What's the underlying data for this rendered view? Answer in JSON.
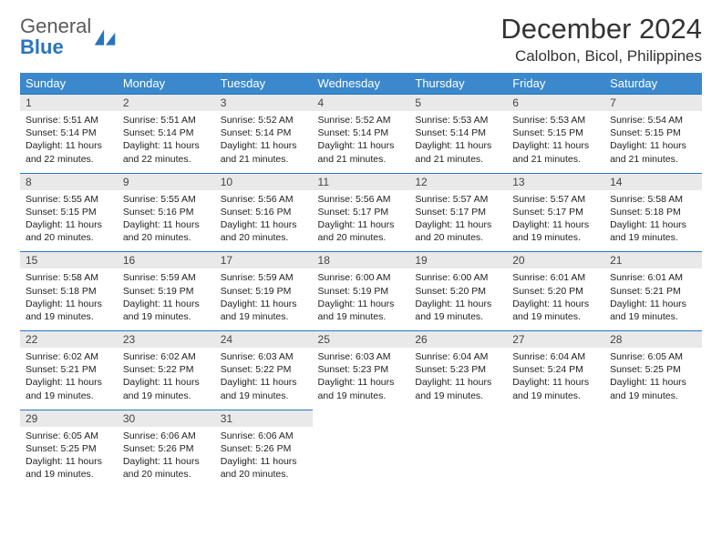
{
  "brand": {
    "word1": "General",
    "word2": "Blue",
    "color1": "#5b5b5b",
    "color2": "#2a74bd"
  },
  "title": "December 2024",
  "location": "Calolbon, Bicol, Philippines",
  "weekday_header_bg": "#3b89cc",
  "daynum_bg": "#e9e9e9",
  "rule_color": "#2a74bd",
  "weekdays": [
    "Sunday",
    "Monday",
    "Tuesday",
    "Wednesday",
    "Thursday",
    "Friday",
    "Saturday"
  ],
  "weeks": [
    [
      {
        "n": "1",
        "sr": "Sunrise: 5:51 AM",
        "ss": "Sunset: 5:14 PM",
        "dl": "Daylight: 11 hours and 22 minutes."
      },
      {
        "n": "2",
        "sr": "Sunrise: 5:51 AM",
        "ss": "Sunset: 5:14 PM",
        "dl": "Daylight: 11 hours and 22 minutes."
      },
      {
        "n": "3",
        "sr": "Sunrise: 5:52 AM",
        "ss": "Sunset: 5:14 PM",
        "dl": "Daylight: 11 hours and 21 minutes."
      },
      {
        "n": "4",
        "sr": "Sunrise: 5:52 AM",
        "ss": "Sunset: 5:14 PM",
        "dl": "Daylight: 11 hours and 21 minutes."
      },
      {
        "n": "5",
        "sr": "Sunrise: 5:53 AM",
        "ss": "Sunset: 5:14 PM",
        "dl": "Daylight: 11 hours and 21 minutes."
      },
      {
        "n": "6",
        "sr": "Sunrise: 5:53 AM",
        "ss": "Sunset: 5:15 PM",
        "dl": "Daylight: 11 hours and 21 minutes."
      },
      {
        "n": "7",
        "sr": "Sunrise: 5:54 AM",
        "ss": "Sunset: 5:15 PM",
        "dl": "Daylight: 11 hours and 21 minutes."
      }
    ],
    [
      {
        "n": "8",
        "sr": "Sunrise: 5:55 AM",
        "ss": "Sunset: 5:15 PM",
        "dl": "Daylight: 11 hours and 20 minutes."
      },
      {
        "n": "9",
        "sr": "Sunrise: 5:55 AM",
        "ss": "Sunset: 5:16 PM",
        "dl": "Daylight: 11 hours and 20 minutes."
      },
      {
        "n": "10",
        "sr": "Sunrise: 5:56 AM",
        "ss": "Sunset: 5:16 PM",
        "dl": "Daylight: 11 hours and 20 minutes."
      },
      {
        "n": "11",
        "sr": "Sunrise: 5:56 AM",
        "ss": "Sunset: 5:17 PM",
        "dl": "Daylight: 11 hours and 20 minutes."
      },
      {
        "n": "12",
        "sr": "Sunrise: 5:57 AM",
        "ss": "Sunset: 5:17 PM",
        "dl": "Daylight: 11 hours and 20 minutes."
      },
      {
        "n": "13",
        "sr": "Sunrise: 5:57 AM",
        "ss": "Sunset: 5:17 PM",
        "dl": "Daylight: 11 hours and 19 minutes."
      },
      {
        "n": "14",
        "sr": "Sunrise: 5:58 AM",
        "ss": "Sunset: 5:18 PM",
        "dl": "Daylight: 11 hours and 19 minutes."
      }
    ],
    [
      {
        "n": "15",
        "sr": "Sunrise: 5:58 AM",
        "ss": "Sunset: 5:18 PM",
        "dl": "Daylight: 11 hours and 19 minutes."
      },
      {
        "n": "16",
        "sr": "Sunrise: 5:59 AM",
        "ss": "Sunset: 5:19 PM",
        "dl": "Daylight: 11 hours and 19 minutes."
      },
      {
        "n": "17",
        "sr": "Sunrise: 5:59 AM",
        "ss": "Sunset: 5:19 PM",
        "dl": "Daylight: 11 hours and 19 minutes."
      },
      {
        "n": "18",
        "sr": "Sunrise: 6:00 AM",
        "ss": "Sunset: 5:19 PM",
        "dl": "Daylight: 11 hours and 19 minutes."
      },
      {
        "n": "19",
        "sr": "Sunrise: 6:00 AM",
        "ss": "Sunset: 5:20 PM",
        "dl": "Daylight: 11 hours and 19 minutes."
      },
      {
        "n": "20",
        "sr": "Sunrise: 6:01 AM",
        "ss": "Sunset: 5:20 PM",
        "dl": "Daylight: 11 hours and 19 minutes."
      },
      {
        "n": "21",
        "sr": "Sunrise: 6:01 AM",
        "ss": "Sunset: 5:21 PM",
        "dl": "Daylight: 11 hours and 19 minutes."
      }
    ],
    [
      {
        "n": "22",
        "sr": "Sunrise: 6:02 AM",
        "ss": "Sunset: 5:21 PM",
        "dl": "Daylight: 11 hours and 19 minutes."
      },
      {
        "n": "23",
        "sr": "Sunrise: 6:02 AM",
        "ss": "Sunset: 5:22 PM",
        "dl": "Daylight: 11 hours and 19 minutes."
      },
      {
        "n": "24",
        "sr": "Sunrise: 6:03 AM",
        "ss": "Sunset: 5:22 PM",
        "dl": "Daylight: 11 hours and 19 minutes."
      },
      {
        "n": "25",
        "sr": "Sunrise: 6:03 AM",
        "ss": "Sunset: 5:23 PM",
        "dl": "Daylight: 11 hours and 19 minutes."
      },
      {
        "n": "26",
        "sr": "Sunrise: 6:04 AM",
        "ss": "Sunset: 5:23 PM",
        "dl": "Daylight: 11 hours and 19 minutes."
      },
      {
        "n": "27",
        "sr": "Sunrise: 6:04 AM",
        "ss": "Sunset: 5:24 PM",
        "dl": "Daylight: 11 hours and 19 minutes."
      },
      {
        "n": "28",
        "sr": "Sunrise: 6:05 AM",
        "ss": "Sunset: 5:25 PM",
        "dl": "Daylight: 11 hours and 19 minutes."
      }
    ],
    [
      {
        "n": "29",
        "sr": "Sunrise: 6:05 AM",
        "ss": "Sunset: 5:25 PM",
        "dl": "Daylight: 11 hours and 19 minutes."
      },
      {
        "n": "30",
        "sr": "Sunrise: 6:06 AM",
        "ss": "Sunset: 5:26 PM",
        "dl": "Daylight: 11 hours and 20 minutes."
      },
      {
        "n": "31",
        "sr": "Sunrise: 6:06 AM",
        "ss": "Sunset: 5:26 PM",
        "dl": "Daylight: 11 hours and 20 minutes."
      },
      null,
      null,
      null,
      null
    ]
  ]
}
